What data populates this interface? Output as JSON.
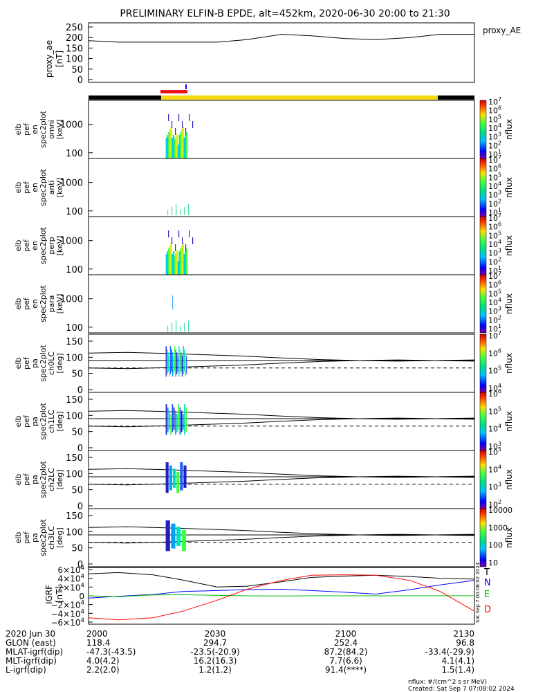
{
  "title": "PRELIMINARY ELFIN-B EPDE, alt=452km, 2020-06-30 20:00 to 21:30",
  "colors": {
    "status_yellow": "#f7d90a",
    "status_red": "#e8141a",
    "igrf_T": "#000000",
    "igrf_N": "#0000ff",
    "igrf_E": "#00bb00",
    "igrf_D": "#ff0000"
  },
  "panels": {
    "ae": {
      "ylabel": [
        "proxy_ae",
        "[nT]"
      ],
      "legend": "proxy_AE",
      "ticks": [
        "250",
        "200",
        "150",
        "100",
        "50",
        "0"
      ],
      "tick_values": [
        250,
        200,
        150,
        100,
        50,
        0
      ]
    },
    "energy": [
      {
        "ylabel": [
          "elb",
          "pef",
          "en",
          "spec2plot",
          "omni",
          "[keV]"
        ]
      },
      {
        "ylabel": [
          "elb",
          "pef",
          "en",
          "spec2plot",
          "anti",
          "[keV]"
        ]
      },
      {
        "ylabel": [
          "elb",
          "pef",
          "en",
          "spec2plot",
          "perp",
          "[keV]"
        ]
      },
      {
        "ylabel": [
          "elb",
          "pef",
          "en",
          "spec2plot",
          "para",
          "[keV]"
        ]
      }
    ],
    "energy_ticks": [
      "1000",
      "100"
    ],
    "pitch": [
      {
        "ylabel": [
          "elb",
          "pef",
          "pa",
          "spec2plot",
          "ch0LC",
          "[deg]"
        ]
      },
      {
        "ylabel": [
          "elb",
          "pef",
          "pa",
          "spec2plot",
          "ch1LC",
          "[deg]"
        ]
      },
      {
        "ylabel": [
          "elb",
          "pef",
          "pa",
          "spec2plot",
          "ch2LC",
          "[deg]"
        ]
      },
      {
        "ylabel": [
          "elb",
          "pef",
          "pa",
          "spec2plot",
          "ch3LC",
          "[deg]"
        ]
      }
    ],
    "pitch_ticks": [
      "150",
      "100",
      "50",
      "0"
    ],
    "pitch_tick_values": [
      150,
      100,
      50,
      0
    ],
    "colorbars": [
      {
        "labels": [
          "10^7",
          "10^6",
          "10^5",
          "10^4",
          "10^3",
          "10^2",
          "10^1"
        ],
        "unit": "nflux"
      },
      {
        "labels": [
          "10^7",
          "10^6",
          "10^5",
          "10^4",
          "10^3",
          "10^2",
          "10^1"
        ],
        "unit": "nflux"
      },
      {
        "labels": [
          "10^7",
          "10^6",
          "10^5",
          "10^4",
          "10^3",
          "10^2",
          "10^1"
        ],
        "unit": "nflux"
      },
      {
        "labels": [
          "10^7",
          "10^6",
          "10^5",
          "10^4",
          "10^3",
          "10^2",
          "10^1"
        ],
        "unit": "nflux"
      },
      {
        "labels": [
          "10^7",
          "10^6",
          "10^5",
          "10^4"
        ],
        "unit": "nflux"
      },
      {
        "labels": [
          "10^6",
          "10^5",
          "10^4",
          "10^3"
        ],
        "unit": "nflux"
      },
      {
        "labels": [
          "10^5",
          "10^4",
          "10^3",
          "10^2"
        ],
        "unit": "nflux"
      },
      {
        "labels": [
          "10000",
          "1000",
          "100",
          "10"
        ],
        "unit": "nflux"
      }
    ],
    "igrf": {
      "ylabel": [
        "IGRF",
        "[nT]"
      ],
      "ticks": [
        "6×10^4",
        "4×10^4",
        "2×10^4",
        "0",
        "−2×10^4",
        "−4×10^4",
        "−6×10^4"
      ],
      "tick_values": [
        60000,
        40000,
        20000,
        0,
        -20000,
        -40000,
        -60000
      ],
      "legend": [
        "T",
        "N",
        "E",
        "D"
      ],
      "side_note": "Sat Sep  7 00:08:02 2024"
    }
  },
  "ephemeris": {
    "labels": [
      "2020 Jun 30",
      "GLON (east)",
      "MLAT-igrf(dip)",
      "MLT-igrf(dip)",
      "L-igrf(dip)"
    ],
    "columns": [
      [
        "2000",
        "118.4",
        "-47.3(-43.5)",
        "4.0(4.2)",
        "2.2(2.0)"
      ],
      [
        "2030",
        "294.7",
        "-23.5(-20.9)",
        "16.2(16.3)",
        "1.2(1.2)"
      ],
      [
        "2100",
        "252.4",
        "87.2(84.2)",
        "7.7(6.6)",
        "91.4(****)"
      ],
      [
        "2130",
        "96.8",
        "-33.4(-29.9)",
        "4.1(4.1)",
        "1.5(1.4)"
      ]
    ]
  },
  "footer": {
    "units": "nflux: #/(cm^2 s sr MeV)",
    "created": "Created: Sat Sep  7 07:08:02 2024"
  },
  "chart_data": [
    {
      "type": "line",
      "series": [
        {
          "name": "proxy_AE",
          "x": [
            "20:00",
            "20:07",
            "20:15",
            "20:30",
            "20:37",
            "20:45",
            "20:52",
            "21:00",
            "21:07",
            "21:15",
            "21:22",
            "21:30"
          ],
          "values": [
            185,
            178,
            178,
            178,
            190,
            215,
            208,
            195,
            190,
            200,
            215,
            215
          ]
        }
      ],
      "ylim": [
        0,
        250
      ],
      "xlabel": "",
      "ylabel": "proxy_ae [nT]"
    },
    {
      "type": "heatmap",
      "panels": [
        "omni",
        "anti",
        "perp",
        "para"
      ],
      "ylabel": "[keV]",
      "yscale": "log",
      "ylim": [
        63,
        7000
      ],
      "zscale": "log",
      "zlim": [
        10,
        10000000
      ],
      "zlabel": "nflux",
      "active_time": [
        "20:18",
        "20:23"
      ]
    },
    {
      "type": "line",
      "series": [
        {
          "name": "T",
          "values": [
            50000,
            53000,
            48000,
            36000,
            20000,
            22000,
            32000,
            42000,
            45000,
            47000,
            44000,
            40000,
            38000
          ]
        },
        {
          "name": "N",
          "values": [
            -5000,
            -1000,
            3000,
            10000,
            12000,
            14000,
            15000,
            12000,
            8000,
            4000,
            14000,
            25000,
            35000
          ]
        },
        {
          "name": "E",
          "values": [
            0,
            -2000,
            2000,
            2500,
            1000,
            0,
            -500,
            0,
            0,
            0,
            0,
            0,
            0
          ]
        },
        {
          "name": "D",
          "values": [
            -50000,
            -55000,
            -50000,
            -35000,
            -10000,
            15000,
            35000,
            47000,
            48000,
            47000,
            35000,
            10000,
            -35000
          ]
        }
      ],
      "x": [
        "20:00",
        "20:07",
        "20:15",
        "20:22",
        "20:30",
        "20:37",
        "20:45",
        "20:52",
        "21:00",
        "21:07",
        "21:15",
        "21:22",
        "21:30"
      ],
      "ylim": [
        -60000,
        60000
      ],
      "ylabel": "IGRF [nT]"
    }
  ]
}
